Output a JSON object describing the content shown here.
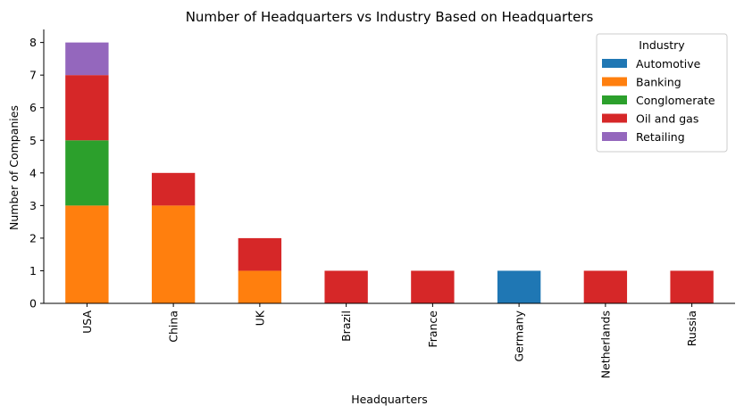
{
  "chart_data": {
    "type": "bar",
    "stacked": true,
    "title": "Number of Headquarters vs Industry Based on Headquarters",
    "xlabel": "Headquarters",
    "ylabel": "Number of Companies",
    "ylim": [
      0,
      8.4
    ],
    "yticks": [
      0,
      1,
      2,
      3,
      4,
      5,
      6,
      7,
      8
    ],
    "categories": [
      "USA",
      "China",
      "UK",
      "Brazil",
      "France",
      "Germany",
      "Netherlands",
      "Russia"
    ],
    "series": [
      {
        "name": "Automotive",
        "color": "#1f77b4",
        "values": [
          0,
          0,
          0,
          0,
          0,
          1,
          0,
          0
        ]
      },
      {
        "name": "Banking",
        "color": "#ff7f0e",
        "values": [
          3,
          3,
          1,
          0,
          0,
          0,
          0,
          0
        ]
      },
      {
        "name": "Conglomerate",
        "color": "#2ca02c",
        "values": [
          2,
          0,
          0,
          0,
          0,
          0,
          0,
          0
        ]
      },
      {
        "name": "Oil and gas",
        "color": "#d62728",
        "values": [
          2,
          1,
          1,
          1,
          1,
          0,
          1,
          1
        ]
      },
      {
        "name": "Retailing",
        "color": "#9467bd",
        "values": [
          1,
          0,
          0,
          0,
          0,
          0,
          0,
          0
        ]
      }
    ],
    "legend": {
      "title": "Industry",
      "placement": "top-right"
    },
    "grid": false
  }
}
